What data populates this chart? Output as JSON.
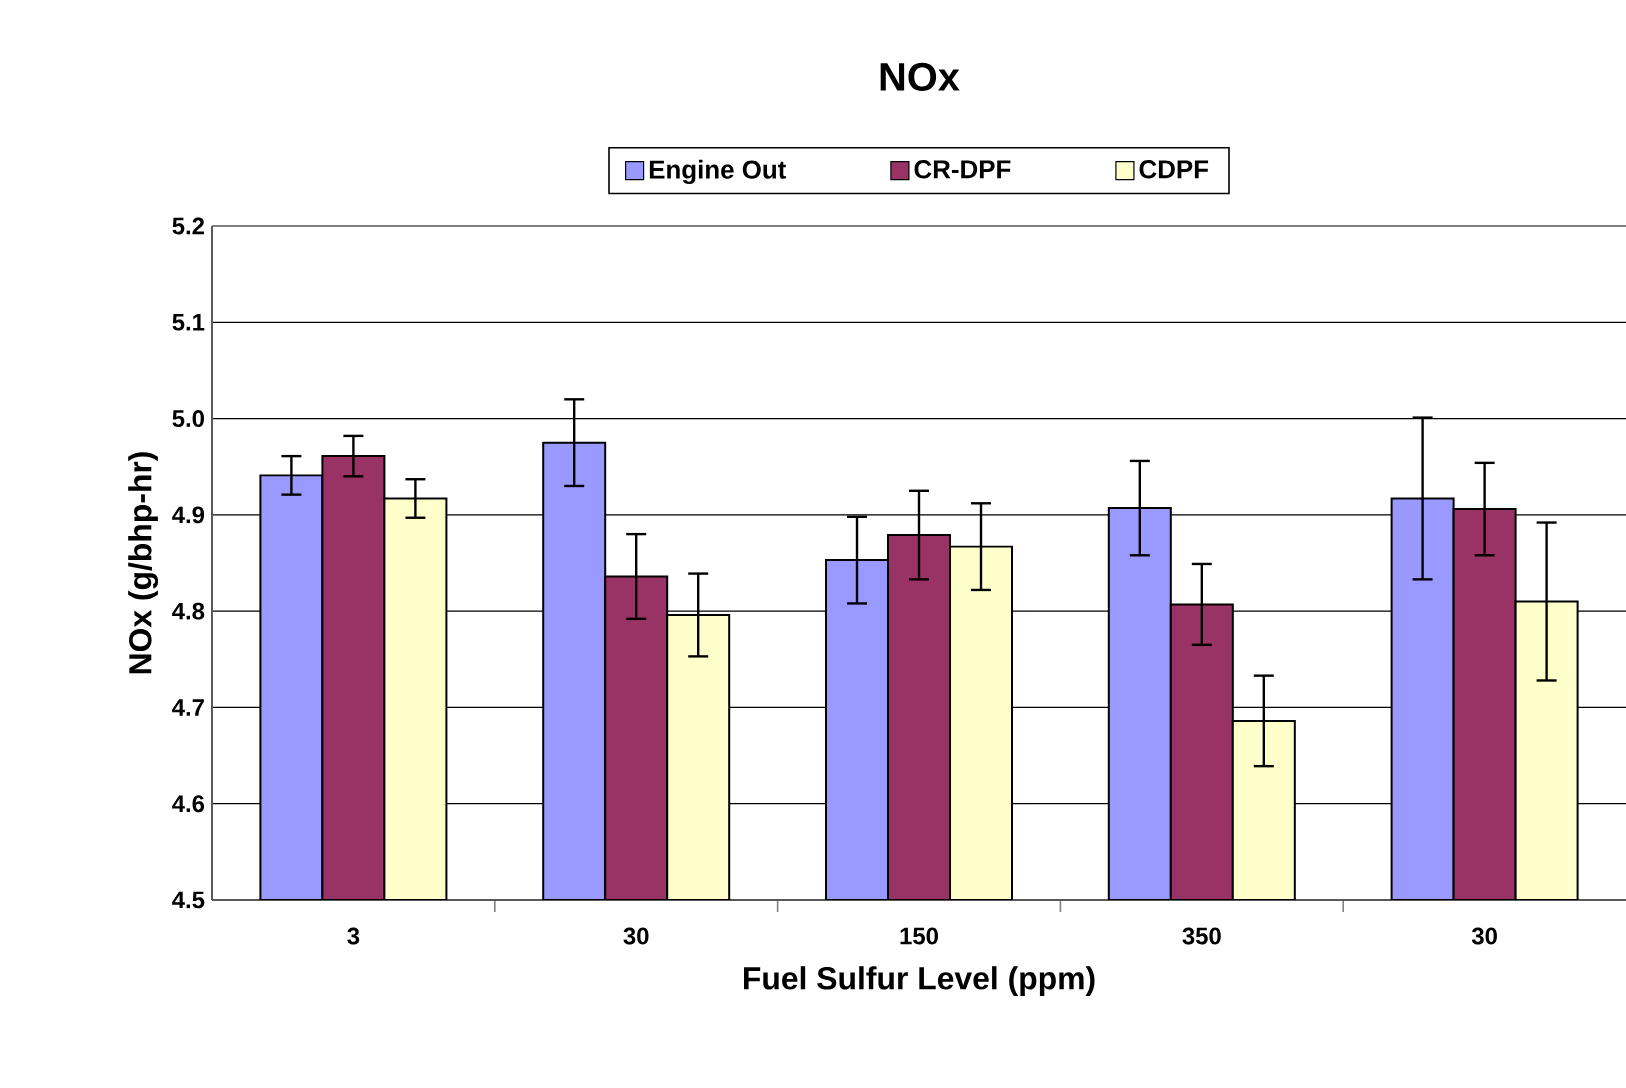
{
  "chart_data": {
    "type": "bar",
    "title": "NOx",
    "xlabel": "Fuel Sulfur Level (ppm)",
    "ylabel": "NOx (g/bhp-hr)",
    "categories": [
      "3",
      "30",
      "150",
      "350",
      "30"
    ],
    "series": [
      {
        "name": "Engine Out",
        "color": "#9999ff",
        "values": [
          4.941,
          4.975,
          4.853,
          4.907,
          4.917
        ],
        "errors": [
          0.02,
          0.045,
          0.045,
          0.049,
          0.084
        ]
      },
      {
        "name": "CR-DPF",
        "color": "#993366",
        "values": [
          4.961,
          4.836,
          4.879,
          4.807,
          4.906
        ],
        "errors": [
          0.021,
          0.044,
          0.046,
          0.042,
          0.048
        ]
      },
      {
        "name": "CDPF",
        "color": "#ffffcc",
        "values": [
          4.917,
          4.796,
          4.867,
          4.686,
          4.81
        ],
        "errors": [
          0.02,
          0.043,
          0.045,
          0.047,
          0.082
        ]
      }
    ],
    "ylim": [
      4.5,
      5.2
    ],
    "yticks": [
      4.5,
      4.6,
      4.7,
      4.8,
      4.9,
      {
        "value": 5,
        "label": "5.0"
      },
      5.1,
      5.2
    ],
    "grid": "y",
    "legend": "top"
  }
}
